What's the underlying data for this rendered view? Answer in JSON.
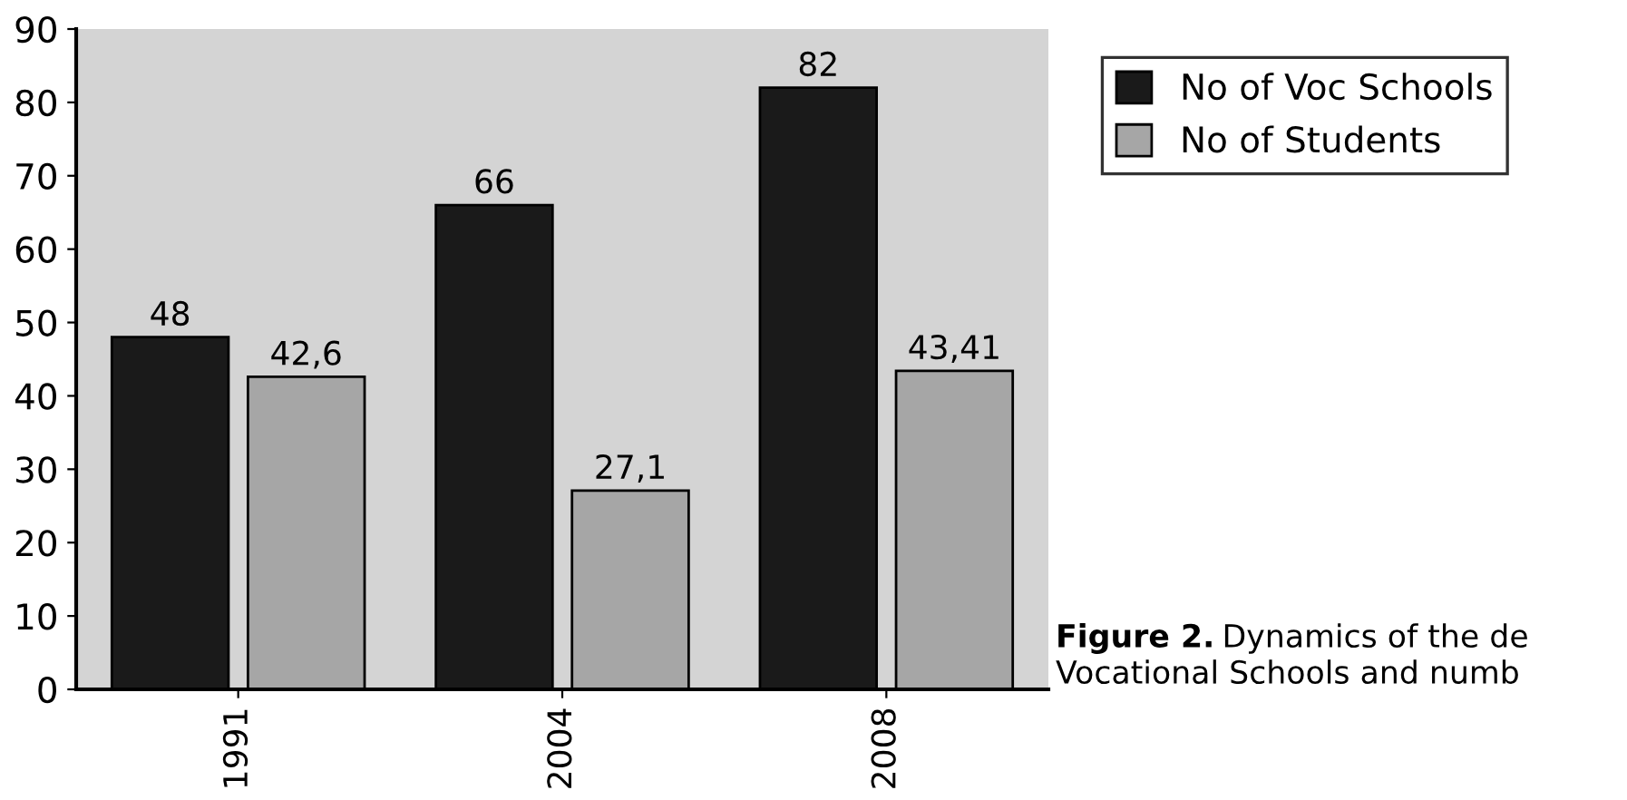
{
  "chart_data": {
    "type": "bar",
    "categories": [
      "1991",
      "2004",
      "2008"
    ],
    "series": [
      {
        "name": "No of Voc Schools",
        "color": "#1a1a1a",
        "values": [
          48,
          66,
          82
        ],
        "value_labels": [
          "48",
          "66",
          "82"
        ]
      },
      {
        "name": "No of Students",
        "color": "#a6a6a6",
        "values": [
          42.6,
          27.1,
          43.41
        ],
        "value_labels": [
          "42,6",
          "27,1",
          "43,41"
        ]
      }
    ],
    "ylim": [
      0,
      90
    ],
    "yticks": [
      0,
      10,
      20,
      30,
      40,
      50,
      60,
      70,
      80,
      90
    ],
    "legend": "top right",
    "grid": false,
    "annotations": [
      "Figure 2.",
      "Dynamics of the de",
      "Vocational Schools and numb"
    ]
  }
}
